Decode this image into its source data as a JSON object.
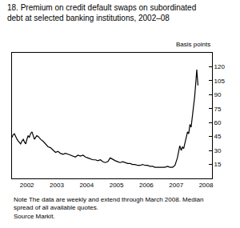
{
  "chart_data": {
    "type": "line",
    "title": "18. Premium on credit default swaps on subordinated debt at selected banking institutions, 2002–08",
    "ylabel": "Basis points",
    "notes": [
      "Note The data are weekly and extend through March 2008. Median spread of all available quotes.",
      "Source Markit."
    ],
    "color": "#000000",
    "grid": false,
    "x": [
      2002.0,
      2002.04,
      2002.08,
      2002.12,
      2002.17,
      2002.21,
      2002.25,
      2002.29,
      2002.33,
      2002.38,
      2002.42,
      2002.46,
      2002.5,
      2002.54,
      2002.58,
      2002.62,
      2002.67,
      2002.71,
      2002.75,
      2002.79,
      2002.83,
      2002.88,
      2002.92,
      2002.96,
      2003.04,
      2003.12,
      2003.21,
      2003.29,
      2003.38,
      2003.46,
      2003.54,
      2003.62,
      2003.71,
      2003.79,
      2003.88,
      2003.96,
      2004.04,
      2004.12,
      2004.21,
      2004.29,
      2004.38,
      2004.46,
      2004.54,
      2004.62,
      2004.71,
      2004.79,
      2004.88,
      2004.96,
      2005.04,
      2005.12,
      2005.21,
      2005.29,
      2005.38,
      2005.46,
      2005.54,
      2005.62,
      2005.71,
      2005.79,
      2005.88,
      2005.96,
      2006.04,
      2006.12,
      2006.21,
      2006.29,
      2006.38,
      2006.46,
      2006.54,
      2006.62,
      2006.71,
      2006.79,
      2006.88,
      2006.96,
      2007.04,
      2007.12,
      2007.21,
      2007.29,
      2007.38,
      2007.46,
      2007.54,
      2007.58,
      2007.62,
      2007.67,
      2007.71,
      2007.75,
      2007.79,
      2007.83,
      2007.88,
      2007.92,
      2007.96,
      2008.0,
      2008.04,
      2008.08,
      2008.12,
      2008.15,
      2008.17,
      2008.19,
      2008.21,
      2008.23
    ],
    "values": [
      44,
      47,
      48,
      45,
      42,
      40,
      38,
      37,
      40,
      42,
      39,
      37,
      42,
      46,
      44,
      48,
      50,
      46,
      42,
      44,
      46,
      45,
      43,
      42,
      40,
      37,
      34,
      33,
      30,
      28,
      29,
      27,
      26,
      27,
      26,
      25,
      24,
      23,
      25,
      24,
      25,
      23,
      22,
      21,
      20,
      20,
      19,
      20,
      18,
      17,
      18,
      22,
      20,
      19,
      18,
      17,
      18,
      17,
      16,
      16,
      15,
      15,
      14,
      14,
      15,
      14,
      14,
      13,
      13,
      12,
      12,
      12,
      12,
      12,
      13,
      12,
      12,
      14,
      22,
      30,
      35,
      30,
      34,
      32,
      38,
      45,
      50,
      48,
      58,
      55,
      65,
      75,
      88,
      100,
      110,
      117,
      108,
      100
    ],
    "xlim": [
      2002,
      2008.7
    ],
    "xticks": [
      {
        "value": 2002.5,
        "label": "2002"
      },
      {
        "value": 2003.5,
        "label": "2003"
      },
      {
        "value": 2004.5,
        "label": "2004"
      },
      {
        "value": 2005.5,
        "label": "2005"
      },
      {
        "value": 2006.5,
        "label": "2006"
      },
      {
        "value": 2007.5,
        "label": "2007"
      },
      {
        "value": 2008.5,
        "label": "2008"
      }
    ],
    "ylim": [
      0,
      135
    ],
    "yticks": [
      15,
      30,
      45,
      60,
      75,
      90,
      105,
      120
    ]
  }
}
